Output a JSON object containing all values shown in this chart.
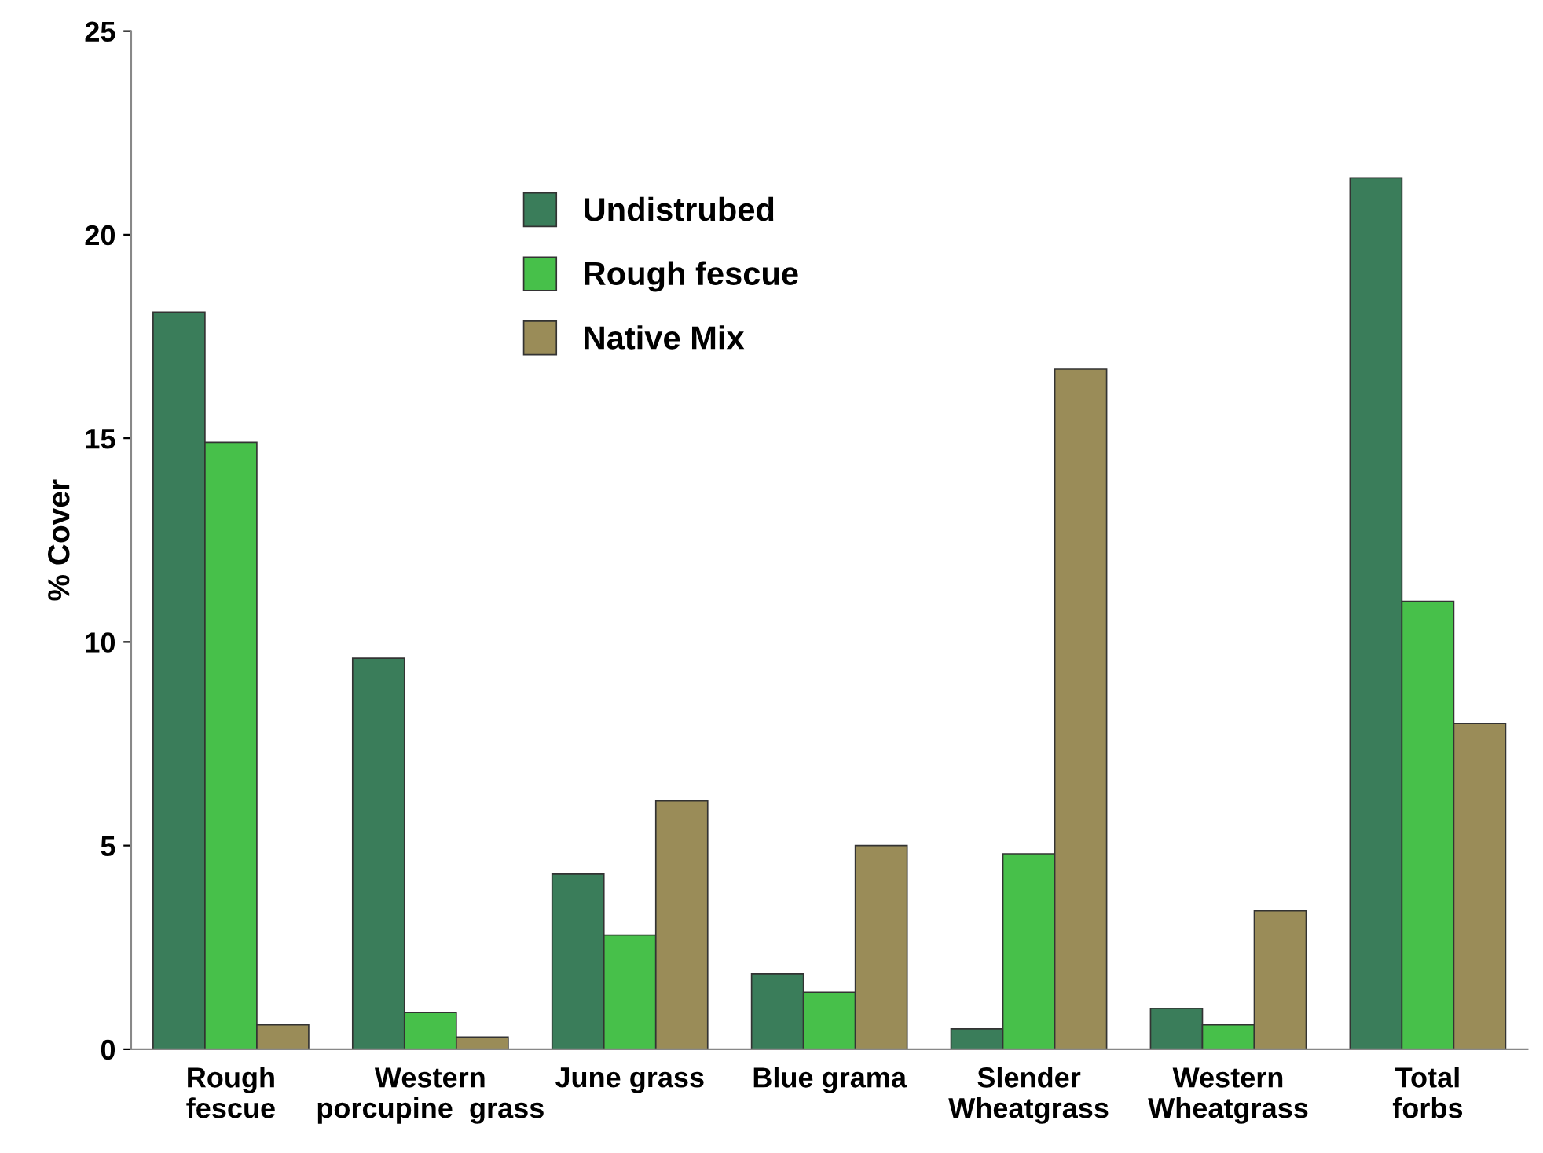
{
  "chart_data": {
    "type": "bar",
    "ylabel": "% Cover",
    "categories": [
      "Rough\nfescue",
      "Western\nporcupine  grass",
      "June grass",
      "Blue grama",
      "Slender\nWheatgrass",
      "Western\nWheatgrass",
      "Total\nforbs"
    ],
    "series": [
      {
        "name": "Undistrubed",
        "color": "#3a7d5a",
        "values": [
          18.1,
          9.6,
          4.3,
          1.85,
          0.5,
          1.0,
          21.4
        ]
      },
      {
        "name": "Rough fescue",
        "color": "#47c04a",
        "values": [
          14.9,
          0.9,
          2.8,
          1.4,
          4.8,
          0.6,
          11.0
        ]
      },
      {
        "name": "Native Mix",
        "color": "#9a8c58",
        "values": [
          0.6,
          0.3,
          6.1,
          5.0,
          16.7,
          3.4,
          8.0
        ]
      }
    ],
    "ylim": [
      0,
      25
    ],
    "yticks": [
      0,
      5,
      10,
      15,
      20,
      25
    ],
    "grid": false,
    "legend": "top left"
  }
}
